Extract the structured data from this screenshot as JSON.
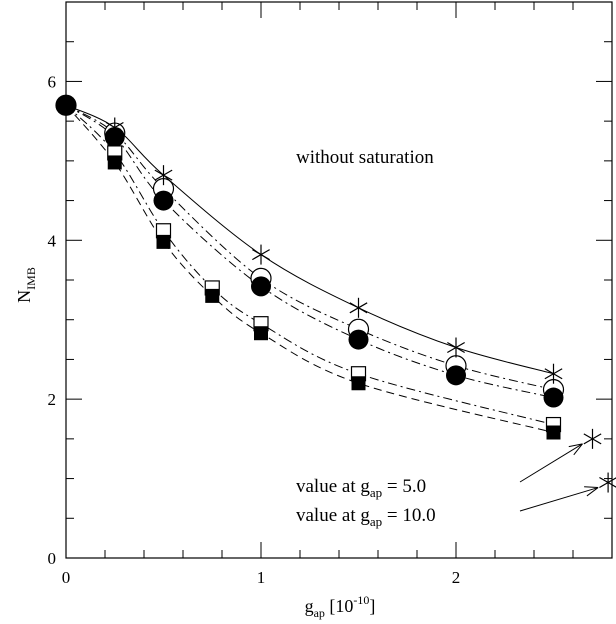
{
  "chart_data": {
    "type": "scatter",
    "title": "",
    "xlabel": {
      "main": "g",
      "sub": "ap",
      "rest": " [10",
      "sup": "-10",
      "end": "]"
    },
    "ylabel": {
      "main": "N",
      "sub": "IMB"
    },
    "xlim": [
      0,
      2.8
    ],
    "ylim": [
      0,
      7
    ],
    "xticks": [
      0,
      1,
      2
    ],
    "yticks": [
      0,
      2,
      4,
      6
    ],
    "annotation": "without saturation",
    "notes": [
      {
        "prefix": "value at g",
        "sub": "ap",
        "eq": " =   5.0",
        "target_series": "stars",
        "target": [
          2.7,
          1.5
        ]
      },
      {
        "prefix": "value at g",
        "sub": "ap",
        "eq": " =  10.0",
        "target_series": "stars",
        "target": [
          2.78,
          0.95
        ]
      }
    ],
    "series": [
      {
        "marker": "star",
        "curve": "solid",
        "x": [
          0,
          0.25,
          0.5,
          1.0,
          1.5,
          2.0,
          2.5
        ],
        "y": [
          5.7,
          5.42,
          4.82,
          3.82,
          3.15,
          2.65,
          2.32
        ]
      },
      {
        "marker": "open-circle",
        "curve": "dashdot",
        "x": [
          0,
          0.25,
          0.5,
          1.0,
          1.5,
          2.0,
          2.5
        ],
        "y": [
          5.7,
          5.35,
          4.65,
          3.52,
          2.88,
          2.42,
          2.12
        ]
      },
      {
        "marker": "filled-circle",
        "curve": "dashdot",
        "x": [
          0,
          0.25,
          0.5,
          1.0,
          1.5,
          2.0,
          2.5
        ],
        "y": [
          5.7,
          5.3,
          4.5,
          3.42,
          2.75,
          2.3,
          2.02
        ]
      },
      {
        "marker": "open-square",
        "curve": "dashdot",
        "x": [
          0,
          0.25,
          0.5,
          0.75,
          1.0,
          1.5,
          2.5
        ],
        "y": [
          5.7,
          5.1,
          4.12,
          3.4,
          2.95,
          2.32,
          1.68
        ]
      },
      {
        "marker": "filled-square",
        "curve": "dashed",
        "x": [
          0,
          0.25,
          0.5,
          0.75,
          1.0,
          1.5,
          2.5
        ],
        "y": [
          5.7,
          4.98,
          3.98,
          3.3,
          2.83,
          2.2,
          1.58
        ]
      }
    ],
    "extra_points": [
      {
        "marker": "star",
        "x": 2.7,
        "y": 1.5
      },
      {
        "marker": "star",
        "x": 2.78,
        "y": 0.95
      }
    ]
  }
}
